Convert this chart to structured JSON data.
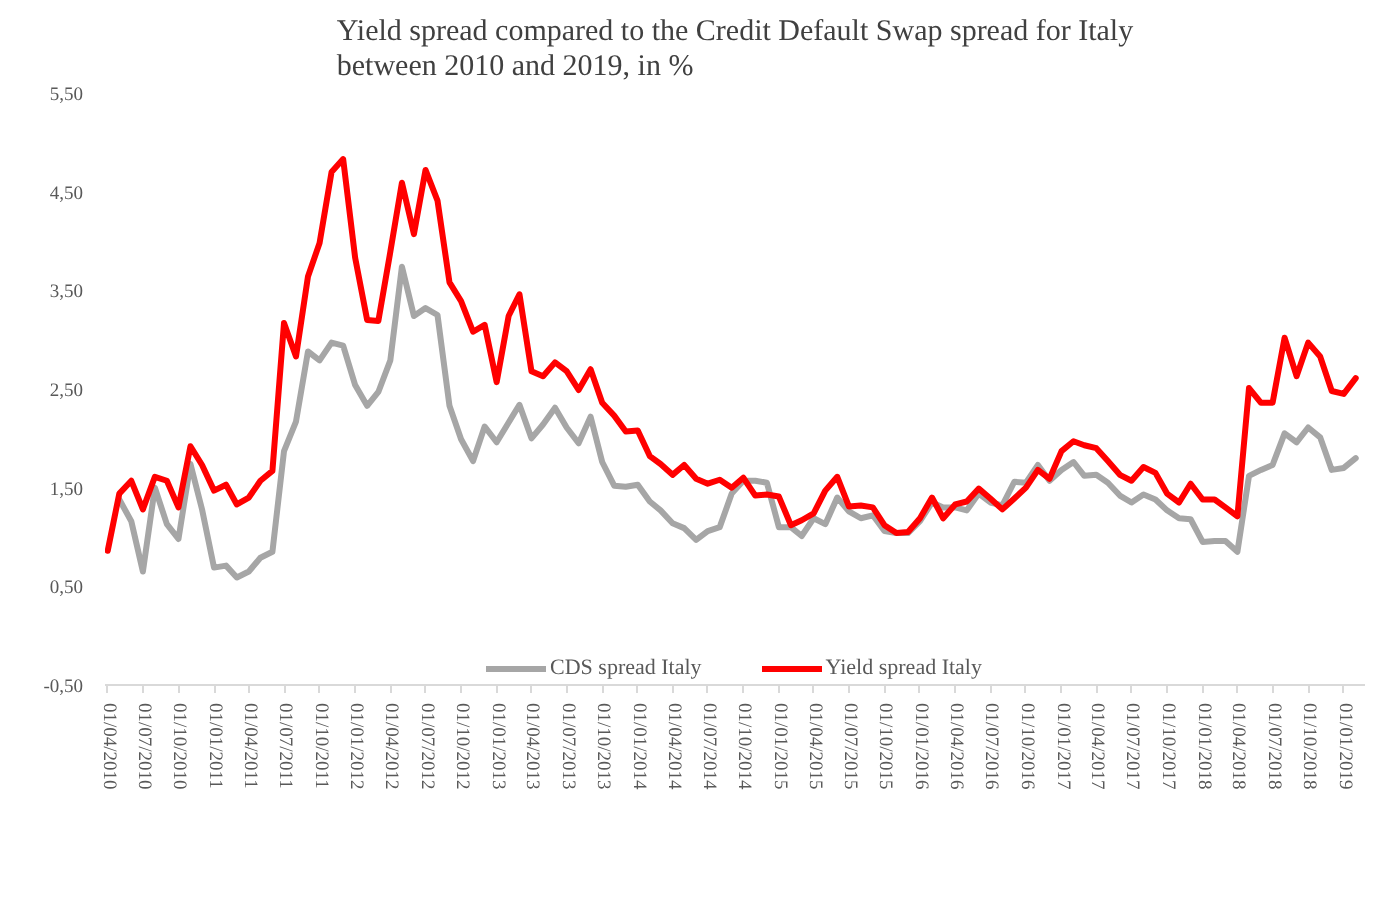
{
  "chart_data": {
    "type": "line",
    "title": "Yield spread compared to the Credit Default Swap spread for Italy\nbetween 2010 and 2019, in %",
    "x": [
      "2010-04",
      "2010-05",
      "2010-06",
      "2010-07",
      "2010-08",
      "2010-09",
      "2010-10",
      "2010-11",
      "2010-12",
      "2011-01",
      "2011-02",
      "2011-03",
      "2011-04",
      "2011-05",
      "2011-06",
      "2011-07",
      "2011-08",
      "2011-09",
      "2011-10",
      "2011-11",
      "2011-12",
      "2012-01",
      "2012-02",
      "2012-03",
      "2012-04",
      "2012-05",
      "2012-06",
      "2012-07",
      "2012-08",
      "2012-09",
      "2012-10",
      "2012-11",
      "2012-12",
      "2013-01",
      "2013-02",
      "2013-03",
      "2013-04",
      "2013-05",
      "2013-06",
      "2013-07",
      "2013-08",
      "2013-09",
      "2013-10",
      "2013-11",
      "2013-12",
      "2014-01",
      "2014-02",
      "2014-03",
      "2014-04",
      "2014-05",
      "2014-06",
      "2014-07",
      "2014-08",
      "2014-09",
      "2014-10",
      "2014-11",
      "2014-12",
      "2015-01",
      "2015-02",
      "2015-03",
      "2015-04",
      "2015-05",
      "2015-06",
      "2015-07",
      "2015-08",
      "2015-09",
      "2015-10",
      "2015-11",
      "2015-12",
      "2016-01",
      "2016-02",
      "2016-03",
      "2016-04",
      "2016-05",
      "2016-06",
      "2016-07",
      "2016-08",
      "2016-09",
      "2016-10",
      "2016-11",
      "2016-12",
      "2017-01",
      "2017-02",
      "2017-03",
      "2017-04",
      "2017-05",
      "2017-06",
      "2017-07",
      "2017-08",
      "2017-09",
      "2017-10",
      "2017-11",
      "2017-12",
      "2018-01",
      "2018-02",
      "2018-03",
      "2018-04",
      "2018-05",
      "2018-06",
      "2018-07",
      "2018-08",
      "2018-09",
      "2018-10",
      "2018-11",
      "2018-12",
      "2019-01",
      "2019-02"
    ],
    "series": [
      {
        "name": "CDS spread Italy",
        "color": "#a6a6a6",
        "values": [
          null,
          1.38,
          1.16,
          0.65,
          1.5,
          1.13,
          0.98,
          1.74,
          1.28,
          0.69,
          0.71,
          0.59,
          0.65,
          0.79,
          0.85,
          1.87,
          2.17,
          2.88,
          2.79,
          2.97,
          2.94,
          2.54,
          2.33,
          2.47,
          2.79,
          3.74,
          3.24,
          3.32,
          3.25,
          2.33,
          1.99,
          1.77,
          2.12,
          1.96,
          2.16,
          2.34,
          2.0,
          2.14,
          2.31,
          2.11,
          1.95,
          2.22,
          1.76,
          1.52,
          1.51,
          1.53,
          1.36,
          1.27,
          1.14,
          1.09,
          0.97,
          1.06,
          1.1,
          1.44,
          1.57,
          1.57,
          1.55,
          1.1,
          1.1,
          1.01,
          1.19,
          1.13,
          1.4,
          1.26,
          1.19,
          1.22,
          1.06,
          1.04,
          1.04,
          1.16,
          1.35,
          1.3,
          1.3,
          1.27,
          1.44,
          1.35,
          1.32,
          1.56,
          1.55,
          1.73,
          1.57,
          1.68,
          1.76,
          1.62,
          1.63,
          1.55,
          1.42,
          1.35,
          1.43,
          1.38,
          1.27,
          1.19,
          1.18,
          0.95,
          0.96,
          0.96,
          0.85,
          1.62,
          1.68,
          1.73,
          2.05,
          1.96,
          2.11,
          2.01,
          1.68,
          1.7,
          1.8
        ]
      },
      {
        "name": "Yield spread Italy",
        "color": "#ff0000",
        "values": [
          0.86,
          1.44,
          1.57,
          1.28,
          1.61,
          1.57,
          1.3,
          1.92,
          1.73,
          1.47,
          1.53,
          1.33,
          1.4,
          1.57,
          1.67,
          3.17,
          2.83,
          3.64,
          3.98,
          4.7,
          4.83,
          3.83,
          3.2,
          3.19,
          3.89,
          4.59,
          4.07,
          4.72,
          4.41,
          3.58,
          3.39,
          3.08,
          3.15,
          2.57,
          3.24,
          3.46,
          2.68,
          2.63,
          2.77,
          2.68,
          2.49,
          2.7,
          2.36,
          2.23,
          2.07,
          2.08,
          1.82,
          1.74,
          1.63,
          1.73,
          1.59,
          1.54,
          1.58,
          1.5,
          1.6,
          1.42,
          1.43,
          1.41,
          1.12,
          1.17,
          1.24,
          1.47,
          1.61,
          1.31,
          1.32,
          1.3,
          1.12,
          1.04,
          1.05,
          1.19,
          1.4,
          1.19,
          1.33,
          1.36,
          1.49,
          1.39,
          1.28,
          1.39,
          1.5,
          1.68,
          1.59,
          1.87,
          1.97,
          1.93,
          1.9,
          1.77,
          1.63,
          1.57,
          1.71,
          1.65,
          1.44,
          1.35,
          1.54,
          1.38,
          1.38,
          1.3,
          1.21,
          2.51,
          2.36,
          2.36,
          3.02,
          2.63,
          2.97,
          2.83,
          2.48,
          2.45,
          2.61
        ]
      }
    ],
    "xlim": [
      "2010-03-25",
      "2019-02-25"
    ],
    "xticks": [
      {
        "value": "2010-04-01",
        "label": "01/04/2010"
      },
      {
        "value": "2010-07-01",
        "label": "01/07/2010"
      },
      {
        "value": "2010-10-01",
        "label": "01/10/2010"
      },
      {
        "value": "2011-01-01",
        "label": "01/01/2011"
      },
      {
        "value": "2011-04-01",
        "label": "01/04/2011"
      },
      {
        "value": "2011-07-01",
        "label": "01/07/2011"
      },
      {
        "value": "2011-10-01",
        "label": "01/10/2011"
      },
      {
        "value": "2012-01-01",
        "label": "01/01/2012"
      },
      {
        "value": "2012-04-01",
        "label": "01/04/2012"
      },
      {
        "value": "2012-07-01",
        "label": "01/07/2012"
      },
      {
        "value": "2012-10-01",
        "label": "01/10/2012"
      },
      {
        "value": "2013-01-01",
        "label": "01/01/2013"
      },
      {
        "value": "2013-04-01",
        "label": "01/04/2013"
      },
      {
        "value": "2013-07-01",
        "label": "01/07/2013"
      },
      {
        "value": "2013-10-01",
        "label": "01/10/2013"
      },
      {
        "value": "2014-01-01",
        "label": "01/01/2014"
      },
      {
        "value": "2014-04-01",
        "label": "01/04/2014"
      },
      {
        "value": "2014-07-01",
        "label": "01/07/2014"
      },
      {
        "value": "2014-10-01",
        "label": "01/10/2014"
      },
      {
        "value": "2015-01-01",
        "label": "01/01/2015"
      },
      {
        "value": "2015-04-01",
        "label": "01/04/2015"
      },
      {
        "value": "2015-07-01",
        "label": "01/07/2015"
      },
      {
        "value": "2015-10-01",
        "label": "01/10/2015"
      },
      {
        "value": "2016-01-01",
        "label": "01/01/2016"
      },
      {
        "value": "2016-04-01",
        "label": "01/04/2016"
      },
      {
        "value": "2016-07-01",
        "label": "01/07/2016"
      },
      {
        "value": "2016-10-01",
        "label": "01/10/2016"
      },
      {
        "value": "2017-01-01",
        "label": "01/01/2017"
      },
      {
        "value": "2017-04-01",
        "label": "01/04/2017"
      },
      {
        "value": "2017-07-01",
        "label": "01/07/2017"
      },
      {
        "value": "2017-10-01",
        "label": "01/10/2017"
      },
      {
        "value": "2018-01-01",
        "label": "01/01/2018"
      },
      {
        "value": "2018-04-01",
        "label": "01/04/2018"
      },
      {
        "value": "2018-07-01",
        "label": "01/07/2018"
      },
      {
        "value": "2018-10-01",
        "label": "01/10/2018"
      },
      {
        "value": "2019-01-01",
        "label": "01/01/2019"
      }
    ],
    "ylim": [
      -0.5,
      5.5
    ],
    "yticks": [
      {
        "value": -0.5,
        "label": "-0,50"
      },
      {
        "value": 0.5,
        "label": "0,50"
      },
      {
        "value": 1.5,
        "label": "1,50"
      },
      {
        "value": 2.5,
        "label": "2,50"
      },
      {
        "value": 3.5,
        "label": "3,50"
      },
      {
        "value": 4.5,
        "label": "4,50"
      },
      {
        "value": 5.5,
        "label": "5,50"
      }
    ],
    "grid": false,
    "legend": "bottom",
    "marker": "none",
    "line_style": "solid"
  }
}
